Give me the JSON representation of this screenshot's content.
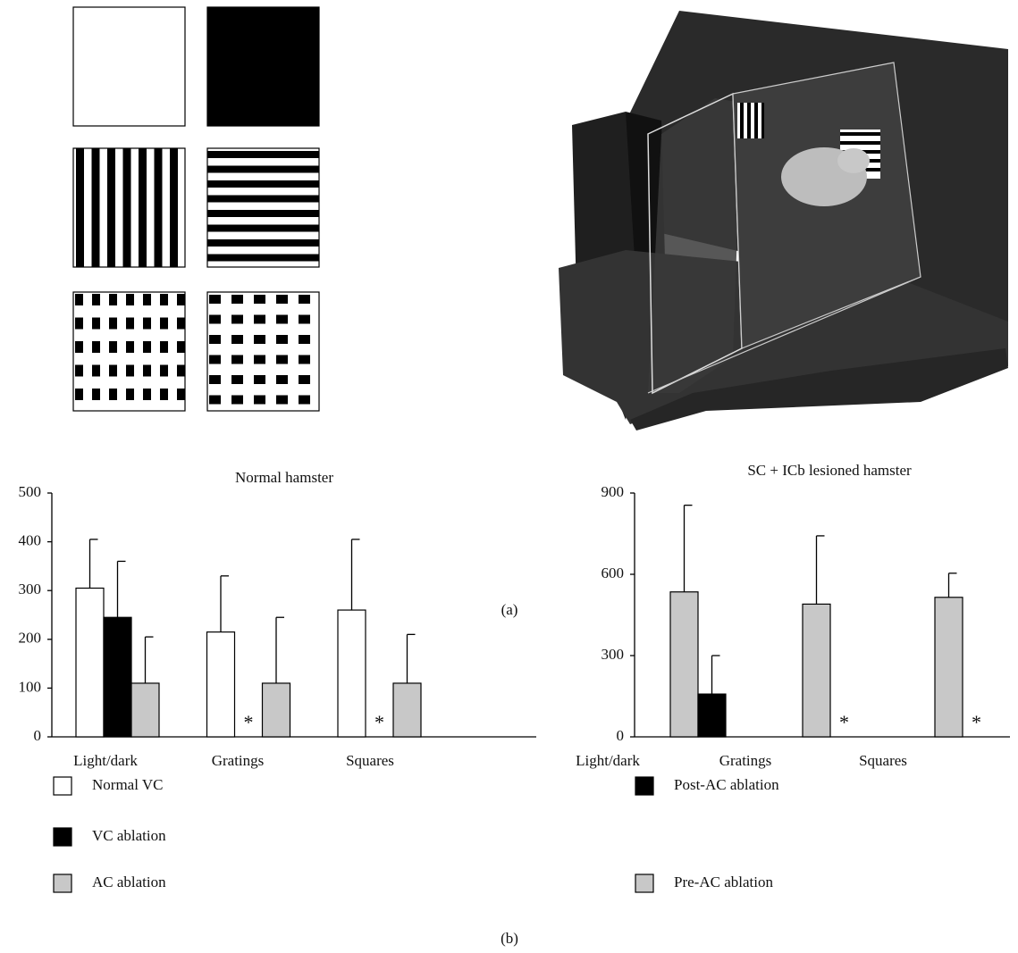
{
  "chart_data": [
    {
      "type": "bar",
      "title": "Normal hamster",
      "categories": [
        "Light/dark",
        "Gratings",
        "Squares"
      ],
      "series": [
        {
          "name": "Normal VC",
          "color": "#ffffff",
          "values": [
            305,
            215,
            260
          ],
          "errors": [
            100,
            115,
            145
          ]
        },
        {
          "name": "VC ablation",
          "color": "#000000",
          "values": [
            245,
            null,
            null
          ],
          "errors": [
            115,
            null,
            null
          ],
          "value_labels": [
            null,
            "*",
            "*"
          ]
        },
        {
          "name": "AC ablation",
          "color": "#c8c8c8",
          "values": [
            110,
            110,
            110
          ],
          "errors": [
            95,
            135,
            100
          ]
        }
      ],
      "ylim": [
        0,
        500
      ],
      "yticks": [
        0,
        100,
        200,
        300,
        400,
        500
      ],
      "grid": false
    },
    {
      "type": "bar",
      "title": "SC + ICb lesioned hamster",
      "categories": [
        "Light/dark",
        "Gratings",
        "Squares"
      ],
      "series": [
        {
          "name": "Pre-AC ablation",
          "color": "#c8c8c8",
          "values": [
            535,
            490,
            515
          ],
          "errors": [
            320,
            252,
            89
          ]
        },
        {
          "name": "Post-AC ablation",
          "color": "#000000",
          "values": [
            158,
            null,
            null
          ],
          "errors": [
            142,
            null,
            null
          ],
          "value_labels": [
            null,
            "*",
            "*"
          ]
        }
      ],
      "ylim": [
        0,
        900
      ],
      "yticks": [
        0,
        300,
        600,
        900
      ],
      "grid": false
    }
  ],
  "panel_labels": [
    "(a)",
    "(b)"
  ]
}
